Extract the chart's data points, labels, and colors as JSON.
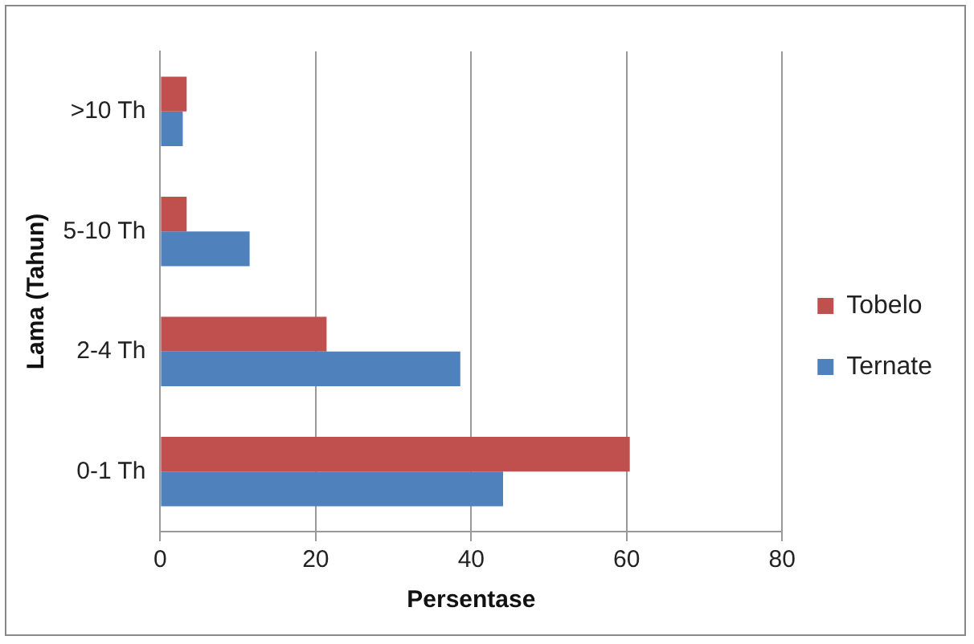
{
  "chart_data": {
    "type": "bar",
    "orientation": "horizontal",
    "xlabel": "Persentase",
    "ylabel": "Lama (Tahun)",
    "categories": [
      ">10 Th",
      "5-10 Th",
      "2-4 Th",
      "0-1 Th"
    ],
    "series": [
      {
        "name": "Tobelo",
        "color": "#c0504d",
        "values": [
          3.4,
          3.4,
          21.4,
          60.4
        ]
      },
      {
        "name": "Ternate",
        "color": "#4f81bd",
        "values": [
          2.9,
          11.5,
          38.6,
          44.1
        ]
      }
    ],
    "xlim": [
      0,
      80
    ],
    "xticks": [
      0,
      20,
      40,
      60,
      80
    ],
    "grid": "x",
    "legend": "right"
  }
}
